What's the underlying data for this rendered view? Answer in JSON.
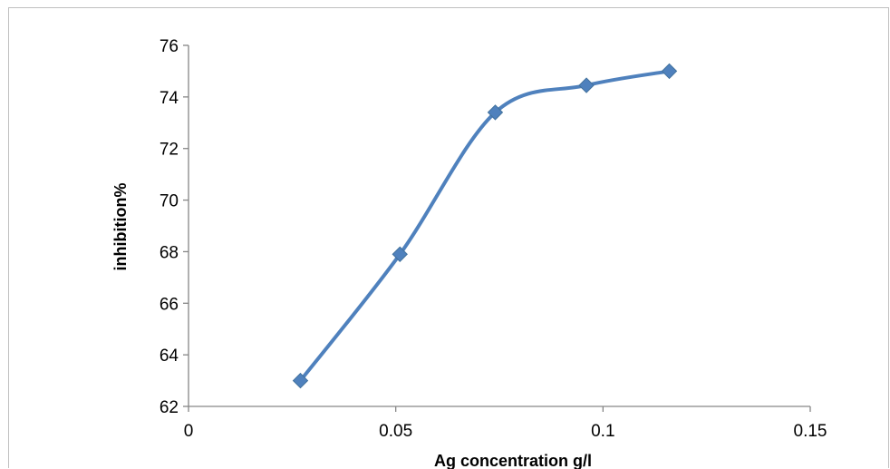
{
  "chart_data": {
    "type": "line",
    "title": "",
    "xlabel": "Ag concentration g/l",
    "ylabel": "inhibition%",
    "xlim": [
      0,
      0.15
    ],
    "ylim": [
      62,
      76
    ],
    "x_ticks": [
      "0",
      "0.05",
      "0.1",
      "0.15"
    ],
    "y_ticks": [
      "62",
      "64",
      "66",
      "68",
      "70",
      "72",
      "74",
      "76"
    ],
    "grid": false,
    "legend": "none",
    "smooth": true,
    "marker": "diamond",
    "series": [
      {
        "color": "#4f81bd",
        "x": [
          0.027,
          0.051,
          0.074,
          0.096,
          0.116
        ],
        "y": [
          63.0,
          67.9,
          73.4,
          74.45,
          75.0
        ]
      }
    ]
  }
}
